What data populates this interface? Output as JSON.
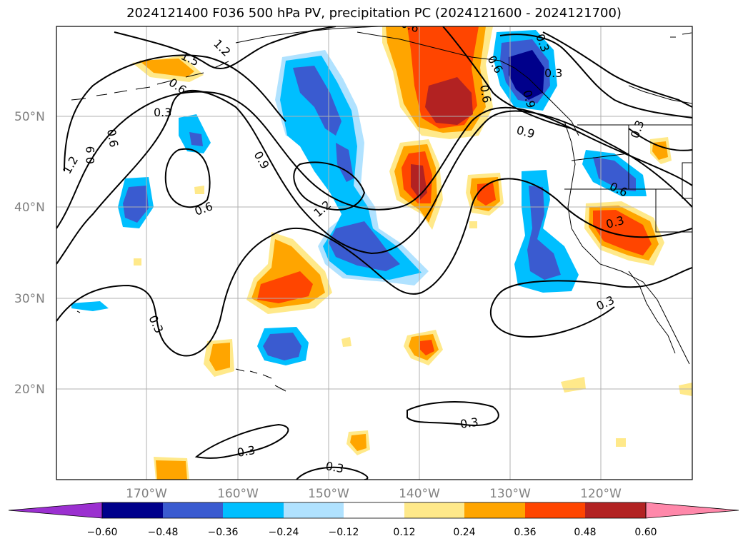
{
  "title": "2024121400 F036 500 hPa PV, precipitation PC (2024121600 - 2024121700)",
  "map": {
    "lat_labels": [
      "50°N",
      "40°N",
      "30°N",
      "20°N"
    ],
    "lon_labels": [
      "170°W",
      "160°W",
      "150°W",
      "140°W",
      "130°W",
      "120°W"
    ],
    "contour_labels": [
      "1.5",
      "1.2",
      "0.6",
      "0.3",
      "0.6",
      "1.2",
      "0.9",
      "0.9",
      "0.6",
      "1.2",
      "0.6",
      "0.9",
      "0.3",
      "0.6",
      "0.3",
      "0.3",
      "0.3",
      "0.3",
      "0.3",
      "0.3",
      "0.3",
      "0.3",
      "0.9",
      "0.6",
      "0.6"
    ]
  },
  "colorbar": {
    "ticks": [
      "−0.60",
      "−0.48",
      "−0.36",
      "−0.24",
      "−0.12",
      "0.12",
      "0.24",
      "0.36",
      "0.48",
      "0.60"
    ],
    "colors": [
      "#9b30d0",
      "#00008b",
      "#3a5bd0",
      "#00bfff",
      "#b0e2ff",
      "#ffffff",
      "#ffe98a",
      "#ffa500",
      "#ff4500",
      "#b22222",
      "#ff88aa"
    ]
  },
  "colors": {
    "neg_dark": "#00008b",
    "neg_mid": "#3a5bd0",
    "neg_light": "#00bfff",
    "neg_pale": "#b0e2ff",
    "pos_pale": "#ffe98a",
    "pos_light": "#ffa500",
    "pos_mid": "#ff4500",
    "pos_dark": "#b22222"
  }
}
